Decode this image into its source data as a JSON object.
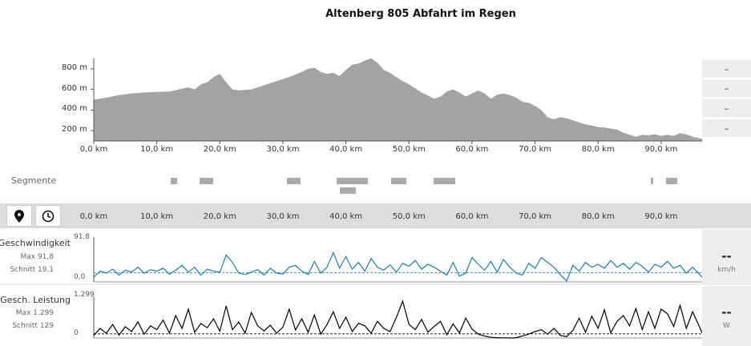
{
  "title": "Altenberg 805  Abfahrt im Regen",
  "distance_axis": {
    "unit": "km",
    "range_km": [
      0,
      96.5
    ],
    "ticks": [
      "0,0 km",
      "10,0 km",
      "20,0 km",
      "30,0 km",
      "40,0 km",
      "50,0 km",
      "60,0 km",
      "70,0 km",
      "80,0 km",
      "90,0 km"
    ],
    "tick_values_km": [
      0,
      10,
      20,
      30,
      40,
      50,
      60,
      70,
      80,
      90
    ]
  },
  "elevation_panel": {
    "y_ticks": [
      "200 m",
      "400 m",
      "600 m",
      "800 m"
    ],
    "y_tick_values_m": [
      200,
      400,
      600,
      800
    ],
    "side_values": [
      "–",
      "–",
      "–",
      "–"
    ]
  },
  "segments": {
    "label": "Segmente",
    "bars": [
      {
        "from_km": 12.2,
        "to_km": 13.2,
        "row": 0
      },
      {
        "from_km": 16.8,
        "to_km": 19.0,
        "row": 0
      },
      {
        "from_km": 30.6,
        "to_km": 32.8,
        "row": 0
      },
      {
        "from_km": 38.5,
        "to_km": 43.5,
        "row": 0
      },
      {
        "from_km": 47.2,
        "to_km": 49.6,
        "row": 0
      },
      {
        "from_km": 53.9,
        "to_km": 57.4,
        "row": 0
      },
      {
        "from_km": 88.3,
        "to_km": 88.7,
        "row": 0
      },
      {
        "from_km": 90.8,
        "to_km": 92.6,
        "row": 0
      },
      {
        "from_km": 39.0,
        "to_km": 41.6,
        "row": 1
      }
    ]
  },
  "toolbar": {
    "buttons": [
      "location-pin-icon",
      "clock-icon"
    ]
  },
  "metrics": {
    "speed": {
      "name": "Geschwindigkeit",
      "max": "Max 91,8",
      "avg": "Schnitt 19,1",
      "ymax_label": "91,8",
      "ymin_label": "0,0",
      "value": "--",
      "unit": "km/h",
      "color": "#1f7ab0"
    },
    "power": {
      "name": "Gesch. Leistung",
      "max": "Max 1.299",
      "avg": "Schnitt 129",
      "ymax_label": "1.299",
      "ymin_label": "0",
      "value": "--",
      "unit": "W",
      "color": "#000000"
    }
  },
  "chart_data": [
    {
      "type": "area",
      "title": "",
      "xlabel": "",
      "ylabel": "",
      "x_unit": "km",
      "y_unit": "m",
      "xlim": [
        0,
        96.5
      ],
      "ylim": [
        100,
        900
      ],
      "color": "#a3a3a3",
      "x": [
        0,
        2,
        4,
        6,
        8,
        10,
        12,
        13.5,
        15,
        16,
        17,
        18,
        19,
        20,
        21,
        22,
        23,
        25,
        27,
        29,
        31,
        33,
        34,
        35,
        36,
        37,
        38,
        39,
        40,
        41,
        42,
        43,
        44,
        45,
        46,
        47,
        48,
        49,
        50,
        51,
        52,
        53,
        54,
        55,
        56,
        57,
        58,
        59,
        60,
        61,
        62,
        63,
        64,
        65,
        66,
        67,
        68,
        69,
        70,
        71,
        72,
        73,
        74,
        75,
        76,
        77,
        78,
        79,
        80,
        81,
        82,
        83,
        84,
        85,
        86,
        87,
        88,
        89,
        90,
        91,
        92,
        93,
        94,
        95,
        96.5
      ],
      "y": [
        500,
        520,
        545,
        560,
        570,
        575,
        580,
        600,
        620,
        600,
        650,
        670,
        720,
        750,
        670,
        600,
        590,
        600,
        640,
        680,
        720,
        770,
        800,
        810,
        770,
        750,
        760,
        730,
        790,
        840,
        850,
        880,
        900,
        860,
        790,
        760,
        720,
        680,
        650,
        610,
        570,
        540,
        510,
        530,
        580,
        600,
        570,
        530,
        560,
        590,
        560,
        510,
        550,
        560,
        545,
        520,
        480,
        470,
        440,
        400,
        330,
        310,
        330,
        320,
        300,
        280,
        260,
        250,
        235,
        230,
        220,
        210,
        180,
        160,
        140,
        160,
        155,
        165,
        150,
        160,
        150,
        175,
        165,
        140,
        120
      ]
    },
    {
      "type": "line",
      "title": "",
      "name": "Geschwindigkeit",
      "x_unit": "km",
      "y_unit": "km/h",
      "xlim": [
        0,
        96.5
      ],
      "ylim": [
        0,
        91.8
      ],
      "color": "#1f7ab0",
      "average": 19.1,
      "x": [
        0,
        1,
        2,
        3,
        4,
        5,
        6,
        7,
        8,
        9,
        10,
        11,
        12,
        13,
        14,
        15,
        16,
        17,
        18,
        19,
        20,
        21,
        22,
        23,
        24,
        25,
        26,
        27,
        28,
        29,
        30,
        31,
        32,
        33,
        34,
        35,
        36,
        37,
        38,
        39,
        40,
        41,
        42,
        43,
        44,
        45,
        46,
        47,
        48,
        49,
        50,
        51,
        52,
        53,
        54,
        55,
        56,
        57,
        58,
        59,
        60,
        61,
        62,
        63,
        64,
        65,
        66,
        67,
        68,
        69,
        70,
        71,
        72,
        73,
        74,
        75,
        76,
        77,
        78,
        79,
        80,
        81,
        82,
        83,
        84,
        85,
        86,
        87,
        88,
        89,
        90,
        91,
        92,
        93,
        94,
        95,
        96.5
      ],
      "y": [
        10,
        22,
        18,
        26,
        14,
        24,
        20,
        30,
        18,
        25,
        22,
        28,
        16,
        24,
        34,
        20,
        30,
        14,
        26,
        22,
        20,
        55,
        40,
        18,
        15,
        20,
        25,
        14,
        28,
        18,
        16,
        30,
        34,
        22,
        15,
        42,
        18,
        30,
        60,
        28,
        52,
        26,
        40,
        22,
        48,
        30,
        24,
        35,
        20,
        38,
        32,
        44,
        26,
        36,
        30,
        22,
        14,
        40,
        12,
        18,
        50,
        36,
        24,
        42,
        20,
        46,
        30,
        18,
        14,
        38,
        28,
        50,
        40,
        30,
        15,
        2,
        34,
        22,
        40,
        30,
        36,
        28,
        44,
        30,
        38,
        26,
        40,
        32,
        20,
        36,
        30,
        42,
        28,
        34,
        18,
        30,
        10
      ]
    },
    {
      "type": "line",
      "title": "",
      "name": "Gesch. Leistung",
      "x_unit": "km",
      "y_unit": "W",
      "xlim": [
        0,
        96.5
      ],
      "ylim": [
        0,
        1299
      ],
      "color": "#000000",
      "average": 129,
      "x": [
        0,
        1,
        2,
        3,
        4,
        5,
        6,
        7,
        8,
        9,
        10,
        11,
        12,
        13,
        14,
        15,
        16,
        17,
        18,
        19,
        20,
        21,
        22,
        23,
        24,
        25,
        26,
        27,
        28,
        29,
        30,
        31,
        32,
        33,
        34,
        35,
        36,
        37,
        38,
        39,
        40,
        41,
        42,
        43,
        44,
        45,
        46,
        47,
        48,
        49,
        50,
        51,
        52,
        53,
        54,
        55,
        56,
        57,
        58,
        59,
        60,
        61,
        62,
        63,
        64,
        65,
        66,
        67,
        68,
        69,
        70,
        71,
        72,
        73,
        74,
        75,
        76,
        77,
        78,
        79,
        80,
        81,
        82,
        83,
        84,
        85,
        86,
        87,
        88,
        89,
        90,
        91,
        92,
        93,
        94,
        95,
        96.5
      ],
      "y": [
        80,
        300,
        150,
        420,
        90,
        350,
        200,
        500,
        120,
        380,
        260,
        560,
        150,
        700,
        300,
        900,
        180,
        450,
        320,
        600,
        210,
        1000,
        260,
        500,
        150,
        800,
        380,
        220,
        400,
        150,
        340,
        900,
        250,
        600,
        180,
        720,
        120,
        420,
        820,
        300,
        650,
        200,
        460,
        380,
        150,
        520,
        300,
        200,
        640,
        1150,
        420,
        260,
        580,
        180,
        360,
        520,
        100,
        440,
        160,
        620,
        280,
        120,
        60,
        20,
        10,
        5,
        0,
        10,
        60,
        120,
        200,
        260,
        120,
        300,
        80,
        40,
        240,
        620,
        180,
        680,
        300,
        880,
        160,
        520,
        700,
        380,
        920,
        260,
        820,
        300,
        900,
        760,
        360,
        1020,
        300,
        820,
        160
      ]
    }
  ]
}
